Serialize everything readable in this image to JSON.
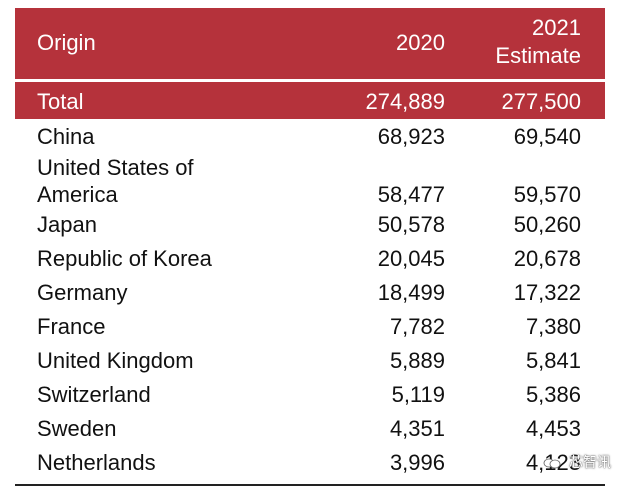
{
  "header": {
    "origin": "Origin",
    "col_2020": "2020",
    "col_2021_line1": "2021",
    "col_2021_line2": "Estimate"
  },
  "total": {
    "label": "Total",
    "v2020": "274,889",
    "v2021": "277,500"
  },
  "rows": [
    {
      "name": "China",
      "v2020": "68,923",
      "v2021": "69,540"
    },
    {
      "name_line1": "United States of",
      "name_line2": "America",
      "v2020": "58,477",
      "v2021": "59,570"
    },
    {
      "name": "Japan",
      "v2020": "50,578",
      "v2021": "50,260"
    },
    {
      "name": "Republic of Korea",
      "v2020": "20,045",
      "v2021": "20,678"
    },
    {
      "name": "Germany",
      "v2020": "18,499",
      "v2021": "17,322"
    },
    {
      "name": "France",
      "v2020": "7,782",
      "v2021": "7,380"
    },
    {
      "name": "United Kingdom",
      "v2020": "5,889",
      "v2021": "5,841"
    },
    {
      "name": "Switzerland",
      "v2020": "5,119",
      "v2021": "5,386"
    },
    {
      "name": "Sweden",
      "v2020": "4,351",
      "v2021": "4,453"
    },
    {
      "name": "Netherlands",
      "v2020": "3,996",
      "v2021": "4,123"
    }
  ],
  "watermark": {
    "text": "芯智讯"
  },
  "colors": {
    "header_bg": "#b5323b",
    "header_text": "#ffffff",
    "body_text": "#111111"
  }
}
